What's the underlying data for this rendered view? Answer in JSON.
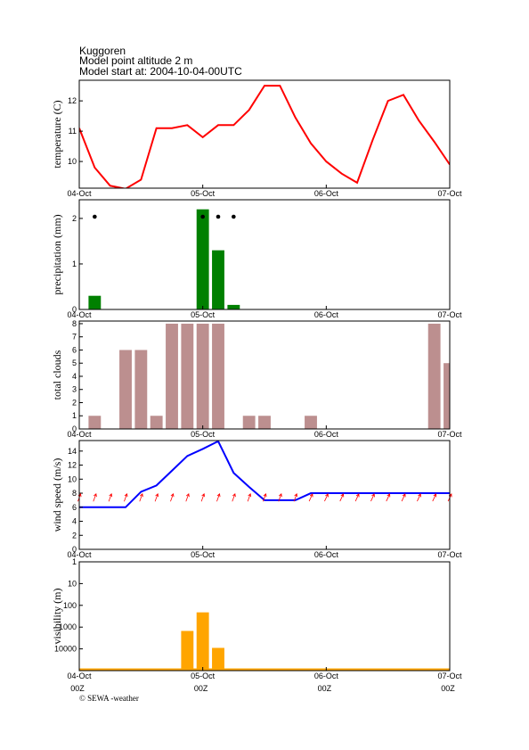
{
  "header": {
    "title": "Kuggoren",
    "lines": [
      "Model point altitude  2 m",
      "Model start at: 2004-10-04-00UTC"
    ]
  },
  "footer": "© SEWA -weather",
  "chart_data": [
    {
      "type": "line",
      "ylabel": "temperature (C)",
      "color": "#ff0000",
      "x": [
        0,
        3,
        6,
        9,
        12,
        15,
        18,
        21,
        24,
        27,
        30,
        33,
        36,
        39,
        42,
        45,
        48,
        51,
        54,
        57,
        60,
        63,
        66,
        69,
        72
      ],
      "values": [
        11.1,
        9.8,
        9.2,
        9.1,
        9.4,
        11.1,
        11.1,
        11.2,
        10.8,
        11.2,
        11.2,
        11.7,
        12.5,
        12.5,
        11.45,
        10.6,
        10.0,
        9.6,
        9.3,
        10.7,
        12.0,
        12.2,
        11.35,
        10.65,
        9.9
      ],
      "xlim": [
        0,
        72
      ],
      "xticks": [
        {
          "value": 0,
          "label": "04-Oct"
        },
        {
          "value": 24,
          "label": "05-Oct"
        },
        {
          "value": 48,
          "label": "06-Oct"
        },
        {
          "value": 72,
          "label": "07-Oct"
        }
      ],
      "ylim": [
        9.12,
        12.68
      ],
      "yticks": [
        10,
        11,
        12
      ]
    },
    {
      "type": "bar",
      "ylabel": "precipitation (mm)",
      "color": "#008000",
      "x": [
        3,
        24,
        27,
        30
      ],
      "values": [
        0.3,
        2.2,
        1.3,
        0.1
      ],
      "symbols_x": [
        3,
        24,
        27,
        30
      ],
      "xlim": [
        0,
        72
      ],
      "xticks": [
        {
          "value": 0,
          "label": "04-Oct"
        },
        {
          "value": 24,
          "label": "05-Oct"
        },
        {
          "value": 48,
          "label": "06-Oct"
        },
        {
          "value": 72,
          "label": "07-Oct"
        }
      ],
      "ylim": [
        0,
        2.41
      ],
      "yticks": [
        0,
        1,
        2
      ]
    },
    {
      "type": "bar",
      "ylabel": "total clouds",
      "color": "#bc8f8f",
      "x": [
        3,
        9,
        12,
        15,
        18,
        21,
        24,
        27,
        33,
        36,
        45,
        69,
        72
      ],
      "values": [
        1,
        6,
        6,
        1,
        8,
        8,
        8,
        8,
        1,
        1,
        1,
        8,
        5
      ],
      "xlim": [
        0,
        72
      ],
      "xticks": [
        {
          "value": 0,
          "label": "04-Oct"
        },
        {
          "value": 24,
          "label": "05-Oct"
        },
        {
          "value": 48,
          "label": "06-Oct"
        },
        {
          "value": 72,
          "label": "07-Oct"
        }
      ],
      "ylim": [
        0,
        8.2
      ],
      "yticks": [
        0,
        1,
        2,
        3,
        4,
        5,
        6,
        7,
        8
      ]
    },
    {
      "type": "line",
      "ylabel": "wind speed (m/s)",
      "color": "#0000ff",
      "x": [
        0,
        3,
        6,
        9,
        12,
        15,
        18,
        21,
        24,
        27,
        30,
        33,
        36,
        39,
        42,
        45,
        48,
        51,
        54,
        57,
        60,
        63,
        66,
        69,
        72
      ],
      "values": [
        6,
        6,
        6,
        6,
        8.2,
        9.1,
        11.2,
        13.3,
        14.3,
        15.4,
        10.9,
        8.9,
        7,
        7,
        7,
        8,
        8,
        8,
        8,
        8,
        8,
        8,
        8,
        8,
        8
      ],
      "arrows": {
        "color": "#ff0000",
        "x": [
          0,
          3,
          6,
          9,
          12,
          15,
          18,
          21,
          24,
          27,
          30,
          33,
          36,
          39,
          42,
          45,
          48,
          51,
          54,
          57,
          60,
          63,
          66,
          69,
          72
        ],
        "directions": [
          20,
          20,
          20,
          20,
          20,
          20,
          20,
          20,
          20,
          20,
          20,
          20,
          20,
          20,
          20,
          25,
          25,
          25,
          25,
          25,
          25,
          25,
          25,
          25,
          25
        ]
      },
      "xlim": [
        0,
        72
      ],
      "xticks": [
        {
          "value": 0,
          "label": "04-Oct"
        },
        {
          "value": 24,
          "label": "05-Oct"
        },
        {
          "value": 48,
          "label": "06-Oct"
        },
        {
          "value": 72,
          "label": "07-Oct"
        }
      ],
      "ylim": [
        0,
        15.5
      ],
      "yticks": [
        0,
        2,
        4,
        6,
        8,
        10,
        12,
        14
      ]
    },
    {
      "type": "bar",
      "ylabel": "visibility (m)",
      "color": "#ffa500",
      "log_scale": true,
      "x": [
        21,
        24,
        27
      ],
      "values": [
        1500,
        210,
        9000
      ],
      "xlim": [
        0,
        72
      ],
      "xticks": [
        {
          "value": 0,
          "label": "04-Oct"
        },
        {
          "value": 24,
          "label": "05-Oct"
        },
        {
          "value": 48,
          "label": "06-Oct"
        },
        {
          "value": 72,
          "label": "07-Oct"
        }
      ],
      "xtick_sublabels": [
        "00Z",
        "00Z",
        "00Z",
        "00Z"
      ],
      "ylim": [
        100000,
        1
      ],
      "yticks": [
        1,
        10,
        100,
        1000,
        10000
      ]
    }
  ]
}
